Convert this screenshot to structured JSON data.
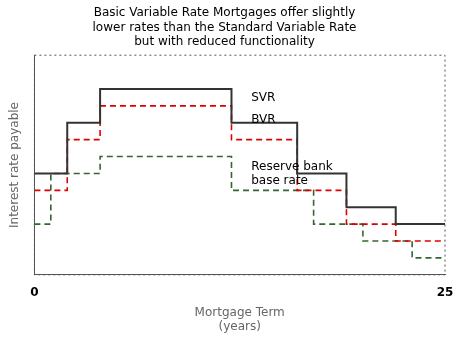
{
  "chart_data": {
    "type": "step",
    "title": "Basic Variable Rate Mortgages offer slightly\nlower rates than the Standard Variable Rate\nbut with reduced functionality",
    "xlabel": "Mortgage Term\n(years)",
    "ylabel": "Interest rate payable",
    "xlim": [
      0,
      25
    ],
    "ylim": [
      0,
      13
    ],
    "xticks": [
      0,
      25
    ],
    "yticks": [],
    "tick_labels": "x",
    "grid": false,
    "series": [
      {
        "color": "#333333",
        "line_style": "solid",
        "x": [
          0,
          2,
          2,
          4,
          4,
          12,
          12,
          16,
          16,
          19,
          19,
          22,
          22,
          25
        ],
        "values": [
          6,
          6,
          9,
          9,
          11,
          11,
          9,
          9,
          6,
          6,
          4,
          4,
          3,
          3
        ]
      },
      {
        "color": "#dd0000",
        "line_style": "dashed",
        "x": [
          0,
          2,
          2,
          4,
          4,
          12,
          12,
          16,
          16,
          19,
          19,
          22,
          22,
          25
        ],
        "values": [
          5,
          5,
          8,
          8,
          10,
          10,
          8,
          8,
          5,
          5,
          3,
          3,
          2,
          2
        ]
      },
      {
        "color": "#336633",
        "line_style": "dashed",
        "x": [
          0,
          1,
          1,
          4,
          4,
          12,
          12,
          17,
          17,
          20,
          20,
          23,
          23,
          25
        ],
        "values": [
          3,
          3,
          6,
          6,
          7,
          7,
          5,
          5,
          3,
          3,
          2,
          2,
          1,
          1
        ]
      }
    ],
    "annotations": [
      {
        "text": "SVR",
        "x": 13.2,
        "y": 10.3
      },
      {
        "text": "BVR",
        "x": 13.2,
        "y": 9.0
      },
      {
        "text": "Reserve bank\nbase rate",
        "x": 13.2,
        "y": 6.2
      }
    ]
  }
}
